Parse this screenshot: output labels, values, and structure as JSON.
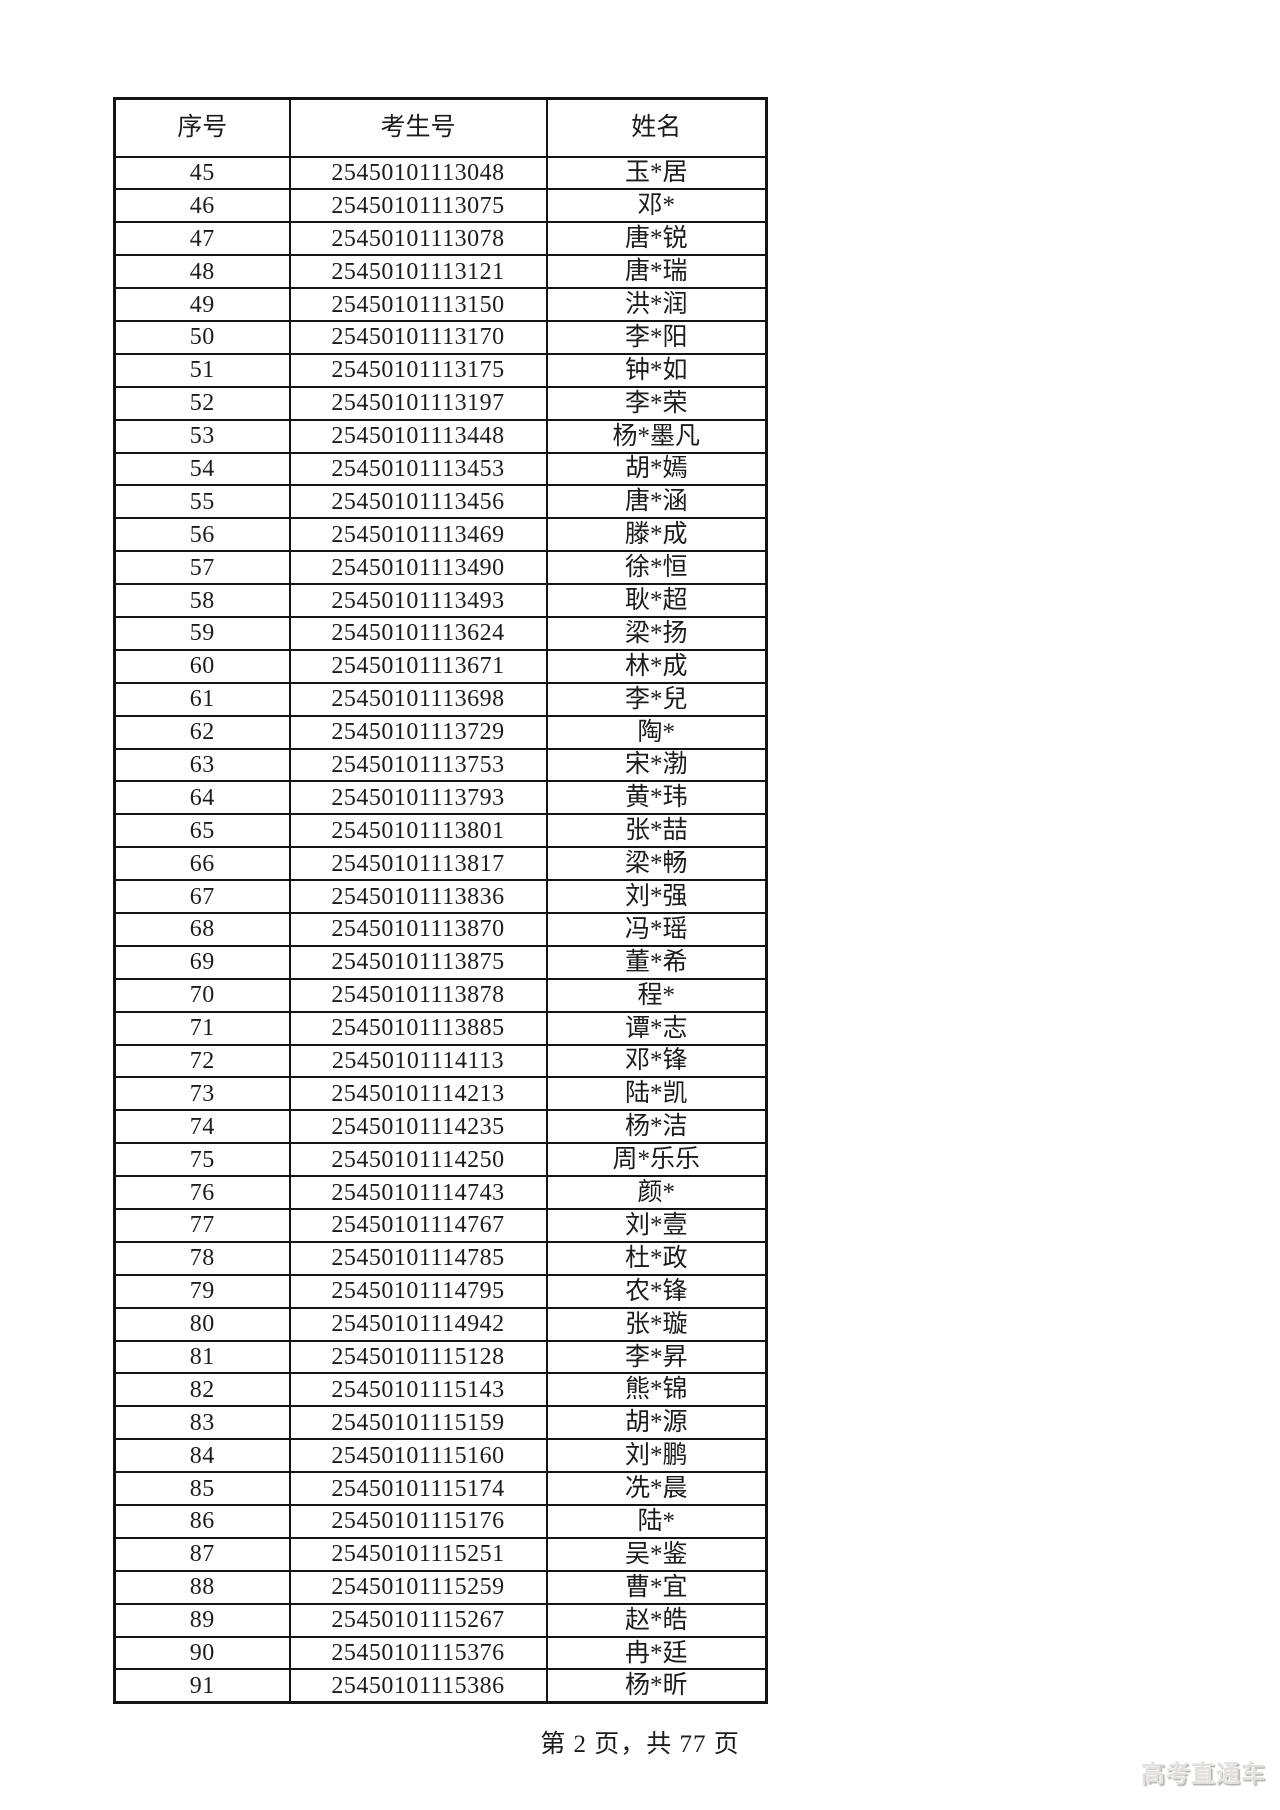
{
  "page": {
    "footer_text": "第 2 页，共 77 页",
    "watermark_text": "高考直通车",
    "background_color": "#ffffff",
    "ink_color": "#1c1c1c",
    "border_color": "#141414",
    "watermark_color": "#e3e1df"
  },
  "table": {
    "headers": [
      "序号",
      "考生号",
      "姓名"
    ],
    "rows": [
      [
        "45",
        "25450101113048",
        "玉*居"
      ],
      [
        "46",
        "25450101113075",
        "邓*"
      ],
      [
        "47",
        "25450101113078",
        "唐*锐"
      ],
      [
        "48",
        "25450101113121",
        "唐*瑞"
      ],
      [
        "49",
        "25450101113150",
        "洪*润"
      ],
      [
        "50",
        "25450101113170",
        "李*阳"
      ],
      [
        "51",
        "25450101113175",
        "钟*如"
      ],
      [
        "52",
        "25450101113197",
        "李*荣"
      ],
      [
        "53",
        "25450101113448",
        "杨*墨凡"
      ],
      [
        "54",
        "25450101113453",
        "胡*嫣"
      ],
      [
        "55",
        "25450101113456",
        "唐*涵"
      ],
      [
        "56",
        "25450101113469",
        "滕*成"
      ],
      [
        "57",
        "25450101113490",
        "徐*恒"
      ],
      [
        "58",
        "25450101113493",
        "耿*超"
      ],
      [
        "59",
        "25450101113624",
        "梁*扬"
      ],
      [
        "60",
        "25450101113671",
        "林*成"
      ],
      [
        "61",
        "25450101113698",
        "李*兒"
      ],
      [
        "62",
        "25450101113729",
        "陶*"
      ],
      [
        "63",
        "25450101113753",
        "宋*渤"
      ],
      [
        "64",
        "25450101113793",
        "黄*玮"
      ],
      [
        "65",
        "25450101113801",
        "张*喆"
      ],
      [
        "66",
        "25450101113817",
        "梁*畅"
      ],
      [
        "67",
        "25450101113836",
        "刘*强"
      ],
      [
        "68",
        "25450101113870",
        "冯*瑶"
      ],
      [
        "69",
        "25450101113875",
        "董*希"
      ],
      [
        "70",
        "25450101113878",
        "程*"
      ],
      [
        "71",
        "25450101113885",
        "谭*志"
      ],
      [
        "72",
        "25450101114113",
        "邓*锋"
      ],
      [
        "73",
        "25450101114213",
        "陆*凯"
      ],
      [
        "74",
        "25450101114235",
        "杨*洁"
      ],
      [
        "75",
        "25450101114250",
        "周*乐乐"
      ],
      [
        "76",
        "25450101114743",
        "颜*"
      ],
      [
        "77",
        "25450101114767",
        "刘*壹"
      ],
      [
        "78",
        "25450101114785",
        "杜*政"
      ],
      [
        "79",
        "25450101114795",
        "农*锋"
      ],
      [
        "80",
        "25450101114942",
        "张*璇"
      ],
      [
        "81",
        "25450101115128",
        "李*昇"
      ],
      [
        "82",
        "25450101115143",
        "熊*锦"
      ],
      [
        "83",
        "25450101115159",
        "胡*源"
      ],
      [
        "84",
        "25450101115160",
        "刘*鹏"
      ],
      [
        "85",
        "25450101115174",
        "冼*晨"
      ],
      [
        "86",
        "25450101115176",
        "陆*"
      ],
      [
        "87",
        "25450101115251",
        "吴*鉴"
      ],
      [
        "88",
        "25450101115259",
        "曹*宜"
      ],
      [
        "89",
        "25450101115267",
        "赵*皓"
      ],
      [
        "90",
        "25450101115376",
        "冉*廷"
      ],
      [
        "91",
        "25450101115386",
        "杨*昕"
      ]
    ]
  }
}
